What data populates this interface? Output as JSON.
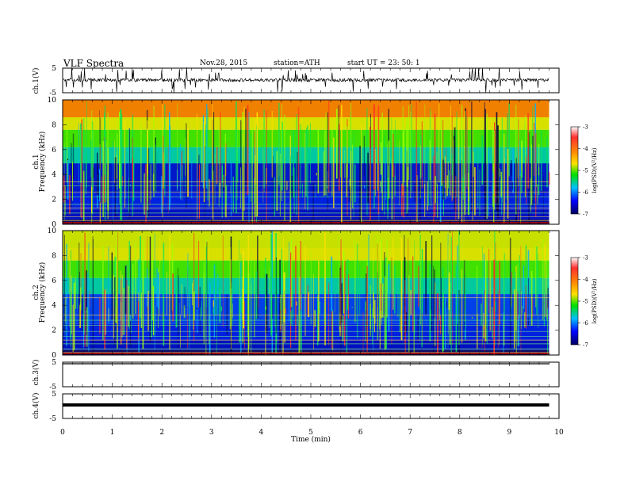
{
  "header": {
    "title": "VLF  Spectra",
    "date": "Nov.28, 2015",
    "station": "station=ATH",
    "start": "start  UT  =    23: 50: 1"
  },
  "panels": {
    "ch1_wave": {
      "ylabel": "ch.1(V)",
      "yticks": [
        "5",
        "-5"
      ]
    },
    "ch1_spec": {
      "ylabel_line1": "ch.1",
      "ylabel_line2": "Frequency  (kHz)",
      "yticks": [
        "10",
        "8",
        "6",
        "4",
        "2",
        "0"
      ]
    },
    "ch2_spec": {
      "ylabel_line1": "ch.2",
      "ylabel_line2": "Frequency  (kHz)",
      "yticks": [
        "10",
        "8",
        "6",
        "4",
        "2",
        "0"
      ]
    },
    "ch3_wave": {
      "ylabel": "ch.3(V)",
      "yticks": [
        "5",
        "-5"
      ]
    },
    "ch4_wave": {
      "ylabel": "ch.4(V)",
      "yticks": [
        "5",
        "-5"
      ]
    }
  },
  "colorbar": {
    "label": "log(PSD)(V²/Hz)",
    "ticks": [
      "-3",
      "-4",
      "-5",
      "-6",
      "-7"
    ],
    "colors": [
      "#ff3030",
      "#ffd400",
      "#00e000",
      "#00c0ff",
      "#0000ff",
      "#000080"
    ]
  },
  "xaxis": {
    "label": "Time  (min)",
    "ticks": [
      "0",
      "1",
      "2",
      "3",
      "4",
      "5",
      "6",
      "7",
      "8",
      "9",
      "10"
    ]
  },
  "chart_data": {
    "type": "heatmap",
    "title": "VLF  Spectra",
    "xlabel": "Time  (min)",
    "xlim": [
      0,
      10
    ],
    "data_end_min": 9.8,
    "series": [
      {
        "name": "ch.1(V)",
        "type": "line",
        "ylim": [
          -5,
          5
        ],
        "baseline": 0
      },
      {
        "name": "ch.1",
        "type": "heatmap",
        "ylabel": "Frequency  (kHz)",
        "ylim": [
          0,
          10
        ],
        "zlabel": "log(PSD)(V²/Hz)",
        "zlim": [
          -7,
          -3
        ]
      },
      {
        "name": "ch.2",
        "type": "heatmap",
        "ylabel": "Frequency  (kHz)",
        "ylim": [
          0,
          10
        ],
        "zlabel": "log(PSD)(V²/Hz)",
        "zlim": [
          -7,
          -3
        ]
      },
      {
        "name": "ch.3(V)",
        "type": "line",
        "ylim": [
          -5,
          5
        ]
      },
      {
        "name": "ch.4(V)",
        "type": "line",
        "ylim": [
          -5,
          5
        ]
      }
    ]
  }
}
